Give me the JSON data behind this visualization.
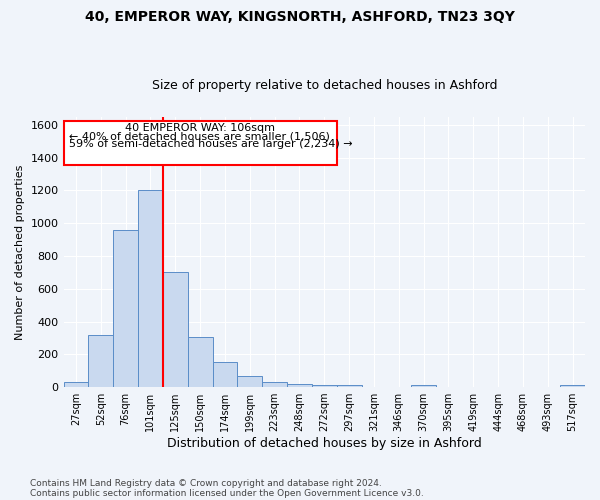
{
  "title": "40, EMPEROR WAY, KINGSNORTH, ASHFORD, TN23 3QY",
  "subtitle": "Size of property relative to detached houses in Ashford",
  "xlabel": "Distribution of detached houses by size in Ashford",
  "ylabel": "Number of detached properties",
  "categories": [
    "27sqm",
    "52sqm",
    "76sqm",
    "101sqm",
    "125sqm",
    "150sqm",
    "174sqm",
    "199sqm",
    "223sqm",
    "248sqm",
    "272sqm",
    "297sqm",
    "321sqm",
    "346sqm",
    "370sqm",
    "395sqm",
    "419sqm",
    "444sqm",
    "468sqm",
    "493sqm",
    "517sqm"
  ],
  "values": [
    30,
    315,
    960,
    1200,
    700,
    305,
    155,
    70,
    30,
    20,
    15,
    15,
    0,
    0,
    15,
    0,
    0,
    0,
    0,
    0,
    15
  ],
  "bar_color": "#c9d9ef",
  "bar_edge_color": "#5a8dc8",
  "red_line_index": 3,
  "ylim": [
    0,
    1650
  ],
  "yticks": [
    0,
    200,
    400,
    600,
    800,
    1000,
    1200,
    1400,
    1600
  ],
  "annotation_title": "40 EMPEROR WAY: 106sqm",
  "annotation_line1": "← 40% of detached houses are smaller (1,506)",
  "annotation_line2": "59% of semi-detached houses are larger (2,234) →",
  "footer1": "Contains HM Land Registry data © Crown copyright and database right 2024.",
  "footer2": "Contains public sector information licensed under the Open Government Licence v3.0.",
  "bg_color": "#f0f4fa",
  "plot_bg_color": "#f0f4fa"
}
